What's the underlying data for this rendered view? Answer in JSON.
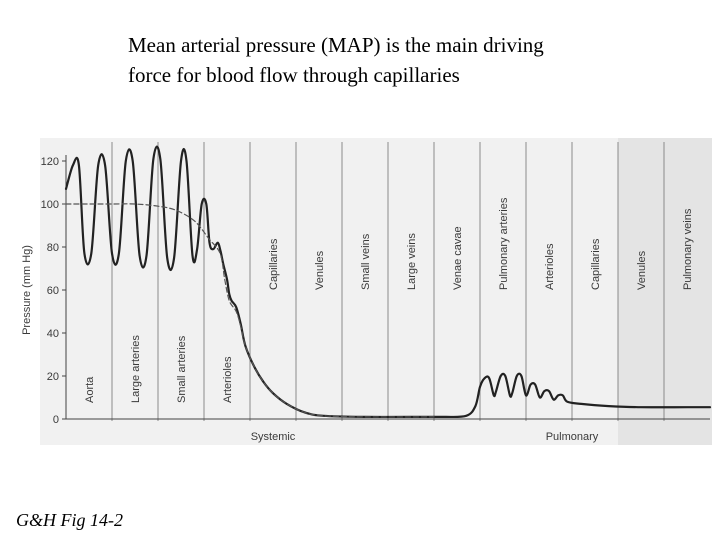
{
  "slide": {
    "title_line1": "Mean arterial pressure (MAP) is the main driving",
    "title_line2": "force for blood flow through capillaries",
    "caption": "G&H Fig 14-2"
  },
  "chart_data": {
    "type": "line",
    "ylabel": "Pressure (mm Hg)",
    "ylim": [
      0,
      120
    ],
    "yticks": [
      0,
      20,
      40,
      60,
      80,
      100,
      120
    ],
    "segments": [
      "Aorta",
      "Large arteries",
      "Small arteries",
      "Arterioles",
      "Capillaries",
      "Venules",
      "Small veins",
      "Large veins",
      "Venae cavae",
      "Pulmonary arteries",
      "Arterioles",
      "Capillaries",
      "Venules",
      "Pulmonary veins"
    ],
    "circulations": [
      "Systemic",
      "Pulmonary"
    ],
    "series": [
      {
        "style": "pulsatile",
        "points": [
          [
            0.0,
            107
          ],
          [
            0.15,
            118
          ],
          [
            0.28,
            118
          ],
          [
            0.4,
            77
          ],
          [
            0.55,
            77
          ],
          [
            0.7,
            118
          ],
          [
            0.85,
            118
          ],
          [
            1.0,
            77
          ],
          [
            1.15,
            77
          ],
          [
            1.3,
            120
          ],
          [
            1.45,
            120
          ],
          [
            1.6,
            76
          ],
          [
            1.75,
            76
          ],
          [
            1.9,
            121
          ],
          [
            2.05,
            121
          ],
          [
            2.2,
            75
          ],
          [
            2.35,
            75
          ],
          [
            2.5,
            120
          ],
          [
            2.62,
            120
          ],
          [
            2.75,
            76
          ],
          [
            2.85,
            79
          ],
          [
            2.95,
            100
          ],
          [
            3.05,
            100
          ],
          [
            3.12,
            82
          ],
          [
            3.2,
            79
          ],
          [
            3.3,
            82
          ],
          [
            3.36,
            78
          ],
          [
            3.42,
            72
          ],
          [
            3.5,
            65
          ],
          [
            3.55,
            58
          ],
          [
            3.6,
            55
          ],
          [
            3.7,
            52
          ],
          [
            3.8,
            44
          ],
          [
            3.9,
            34
          ],
          [
            4.1,
            24
          ],
          [
            4.3,
            17
          ],
          [
            4.5,
            12
          ],
          [
            4.8,
            7
          ],
          [
            5.2,
            3
          ],
          [
            5.6,
            1.5
          ],
          [
            6.5,
            1
          ],
          [
            7.5,
            1
          ],
          [
            8.2,
            1
          ],
          [
            8.7,
            1.5
          ],
          [
            8.9,
            6
          ],
          [
            9.0,
            15
          ],
          [
            9.1,
            19
          ],
          [
            9.2,
            19
          ],
          [
            9.3,
            11
          ],
          [
            9.35,
            13
          ],
          [
            9.45,
            20
          ],
          [
            9.55,
            20
          ],
          [
            9.65,
            11
          ],
          [
            9.7,
            12
          ],
          [
            9.8,
            20
          ],
          [
            9.9,
            20
          ],
          [
            10.0,
            11
          ],
          [
            10.1,
            16
          ],
          [
            10.2,
            16
          ],
          [
            10.3,
            10
          ],
          [
            10.4,
            13
          ],
          [
            10.5,
            13
          ],
          [
            10.6,
            9
          ],
          [
            10.7,
            11
          ],
          [
            10.8,
            11
          ],
          [
            10.9,
            8
          ],
          [
            11.2,
            7
          ],
          [
            11.8,
            6
          ],
          [
            12.5,
            5.5
          ],
          [
            13.5,
            5.5
          ],
          [
            14.0,
            5.5
          ]
        ]
      },
      {
        "style": "mean",
        "points": [
          [
            0.0,
            100
          ],
          [
            0.5,
            100
          ],
          [
            1.0,
            100
          ],
          [
            1.5,
            100
          ],
          [
            2.0,
            99
          ],
          [
            2.4,
            97
          ],
          [
            2.8,
            92
          ],
          [
            3.1,
            84
          ],
          [
            3.35,
            77
          ],
          [
            3.45,
            65
          ],
          [
            3.55,
            55
          ],
          [
            3.7,
            50
          ],
          [
            3.8,
            43
          ],
          [
            3.9,
            34
          ],
          [
            4.1,
            24
          ],
          [
            4.3,
            17
          ],
          [
            4.5,
            12
          ],
          [
            4.8,
            7
          ],
          [
            5.2,
            3
          ],
          [
            5.6,
            1.5
          ],
          [
            6.5,
            1
          ],
          [
            8.0,
            1
          ]
        ]
      }
    ]
  }
}
